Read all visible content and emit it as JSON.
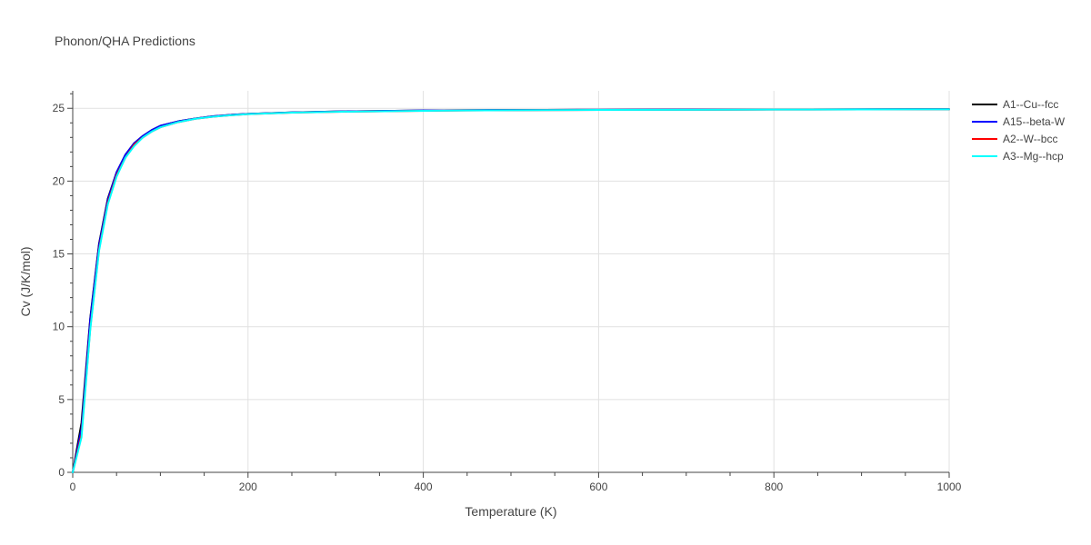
{
  "chart_data": {
    "type": "line",
    "title": "Phonon/QHA Predictions",
    "xlabel": "Temperature (K)",
    "ylabel": "Cv (J/K/mol)",
    "xlim": [
      0,
      1000
    ],
    "ylim": [
      0,
      26.2
    ],
    "x_ticks": [
      0,
      200,
      400,
      600,
      800,
      1000
    ],
    "y_ticks": [
      0,
      5,
      10,
      15,
      20,
      25
    ],
    "x_tick_labels": [
      "0",
      "200",
      "400",
      "600",
      "800",
      "1000"
    ],
    "y_tick_labels": [
      "0",
      "5",
      "10",
      "15",
      "20",
      "25"
    ],
    "grid": true,
    "legend_position": "top-right",
    "series": [
      {
        "name": "A1--Cu--fcc",
        "color": "#000000",
        "x": [
          0,
          10,
          20,
          30,
          40,
          50,
          60,
          70,
          80,
          90,
          100,
          120,
          140,
          160,
          180,
          200,
          250,
          300,
          400,
          500,
          600,
          700,
          800,
          900,
          1000
        ],
        "y": [
          0,
          3.4,
          10.6,
          15.7,
          18.8,
          20.6,
          21.8,
          22.6,
          23.1,
          23.5,
          23.8,
          24.1,
          24.3,
          24.45,
          24.55,
          24.62,
          24.72,
          24.78,
          24.85,
          24.88,
          24.9,
          24.91,
          24.92,
          24.93,
          24.94
        ]
      },
      {
        "name": "A15--beta-W",
        "color": "#0000ff",
        "x": [
          0,
          10,
          20,
          30,
          40,
          50,
          60,
          70,
          80,
          90,
          100,
          120,
          140,
          160,
          180,
          200,
          250,
          300,
          400,
          500,
          600,
          700,
          800,
          900,
          1000
        ],
        "y": [
          0,
          3.0,
          10.5,
          15.6,
          18.7,
          20.6,
          21.8,
          22.6,
          23.1,
          23.5,
          23.8,
          24.1,
          24.3,
          24.45,
          24.55,
          24.62,
          24.72,
          24.78,
          24.85,
          24.88,
          24.9,
          24.91,
          24.92,
          24.93,
          24.94
        ]
      },
      {
        "name": "A2--W--bcc",
        "color": "#ff0000",
        "x": [
          0,
          10,
          20,
          30,
          40,
          50,
          60,
          70,
          80,
          90,
          100,
          120,
          140,
          160,
          180,
          200,
          250,
          300,
          400,
          500,
          600,
          700,
          800,
          900,
          1000
        ],
        "y": [
          0,
          2.6,
          9.9,
          15.3,
          18.5,
          20.4,
          21.6,
          22.5,
          23.0,
          23.4,
          23.7,
          24.05,
          24.28,
          24.42,
          24.52,
          24.6,
          24.7,
          24.76,
          24.83,
          24.87,
          24.89,
          24.9,
          24.91,
          24.92,
          24.93
        ]
      },
      {
        "name": "A3--Mg--hcp",
        "color": "#00ffff",
        "x": [
          0,
          10,
          20,
          30,
          40,
          50,
          60,
          70,
          80,
          90,
          100,
          120,
          140,
          160,
          180,
          200,
          250,
          300,
          400,
          500,
          600,
          700,
          800,
          900,
          1000
        ],
        "y": [
          0,
          2.4,
          9.8,
          15.2,
          18.4,
          20.3,
          21.6,
          22.4,
          23.0,
          23.4,
          23.7,
          24.05,
          24.28,
          24.42,
          24.52,
          24.6,
          24.7,
          24.76,
          24.83,
          24.87,
          24.89,
          24.9,
          24.91,
          24.92,
          24.93
        ]
      }
    ]
  }
}
